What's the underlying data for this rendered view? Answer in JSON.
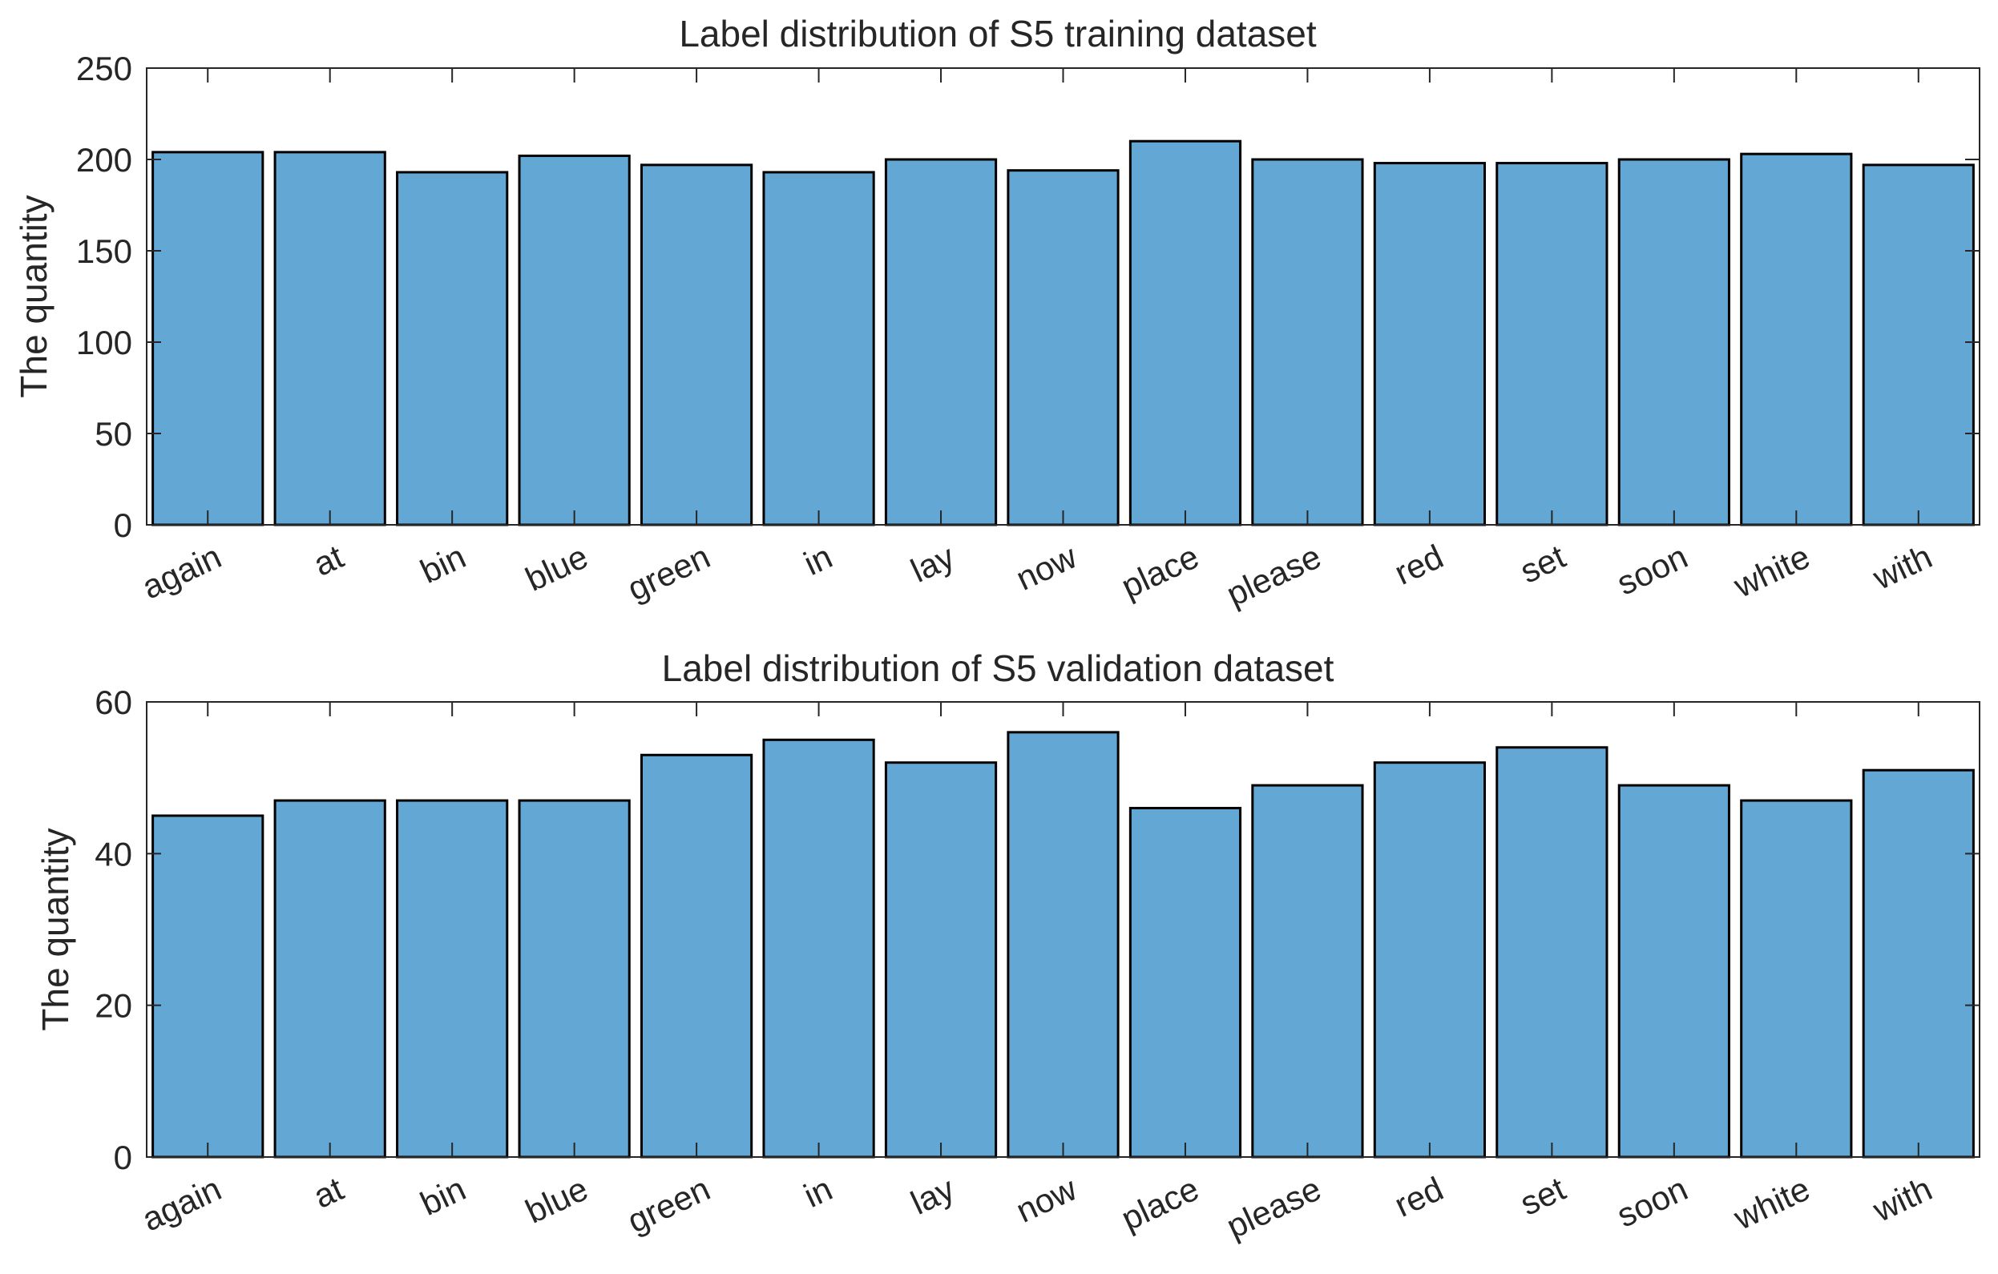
{
  "chart_data": [
    {
      "type": "bar",
      "title": "Label distribution of S5 training dataset",
      "xlabel": "",
      "ylabel": "The quantity",
      "ylim": [
        0,
        250
      ],
      "yticks": [
        0,
        50,
        100,
        150,
        200,
        250
      ],
      "categories": [
        "again",
        "at",
        "bin",
        "blue",
        "green",
        "in",
        "lay",
        "now",
        "place",
        "please",
        "red",
        "set",
        "soon",
        "white",
        "with"
      ],
      "values": [
        204,
        204,
        193,
        202,
        197,
        193,
        200,
        194,
        210,
        200,
        198,
        198,
        200,
        203,
        197
      ],
      "bar_color": "#63A7D5",
      "edge_color": "#000000"
    },
    {
      "type": "bar",
      "title": "Label distribution of S5 validation dataset",
      "xlabel": "",
      "ylabel": "The quantity",
      "ylim": [
        0,
        60
      ],
      "yticks": [
        0,
        20,
        40,
        60
      ],
      "categories": [
        "again",
        "at",
        "bin",
        "blue",
        "green",
        "in",
        "lay",
        "now",
        "place",
        "please",
        "red",
        "set",
        "soon",
        "white",
        "with"
      ],
      "values": [
        45,
        47,
        47,
        47,
        53,
        55,
        52,
        56,
        46,
        49,
        52,
        54,
        49,
        47,
        51
      ],
      "bar_color": "#63A7D5",
      "edge_color": "#000000"
    }
  ]
}
